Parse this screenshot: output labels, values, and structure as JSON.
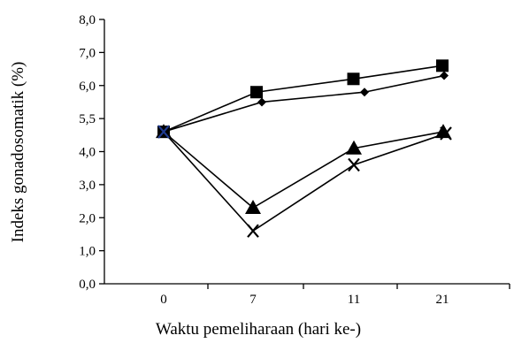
{
  "chart_data": {
    "type": "line",
    "title": "",
    "xlabel": "Waktu pemeliharaan (hari ke-)",
    "ylabel": "Indeks gonadosomatik (%)",
    "categories": [
      "0",
      "7",
      "11",
      "21"
    ],
    "ytick_labels": [
      "0,0",
      "1,0",
      "2,0",
      "3,0",
      "4,0",
      "5,5",
      "6,0",
      "7,0",
      "8,0"
    ],
    "grid": false,
    "legend": "none",
    "series": [
      {
        "marker": "square",
        "x": [
          0,
          7,
          11,
          21
        ],
        "y": [
          4.6,
          5.8,
          6.2,
          6.6
        ]
      },
      {
        "marker": "diamond",
        "x": [
          0,
          7,
          11,
          21
        ],
        "y": [
          4.6,
          5.5,
          5.8,
          6.3
        ]
      },
      {
        "marker": "triangle",
        "x": [
          0,
          7,
          11,
          21
        ],
        "y": [
          4.6,
          2.3,
          4.1,
          4.6
        ]
      },
      {
        "marker": "cross",
        "x": [
          0,
          7,
          11,
          21
        ],
        "y": [
          4.6,
          1.6,
          3.6,
          4.55
        ]
      }
    ],
    "colors": {
      "line": "#000000",
      "marker": "#000000",
      "start_cross": "#1f3a8f"
    }
  }
}
